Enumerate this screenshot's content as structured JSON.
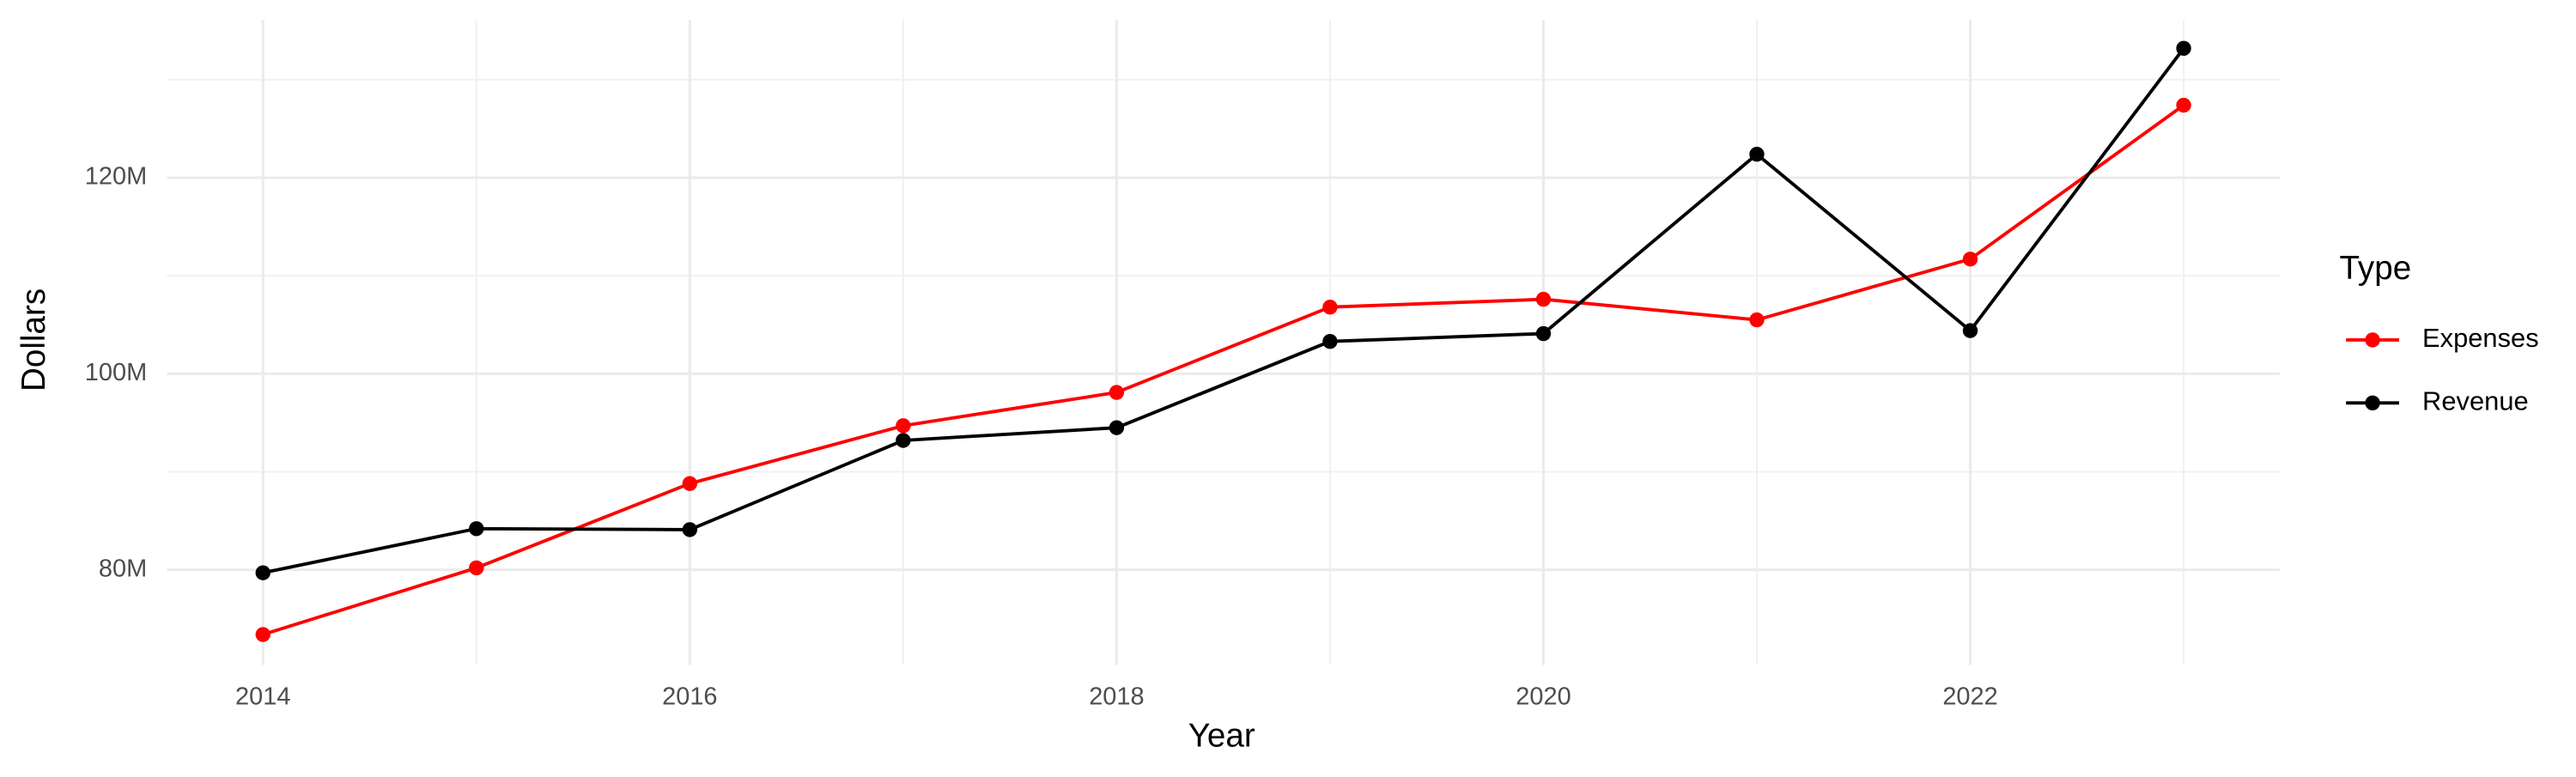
{
  "chart_data": {
    "type": "line",
    "x_label": "Year",
    "y_label": "Dollars",
    "legend_title": "Type",
    "x": [
      2014,
      2015,
      2016,
      2017,
      2018,
      2019,
      2020,
      2021,
      2022,
      2023
    ],
    "series": [
      {
        "name": "Expenses",
        "color": "#ff0000",
        "values": [
          73400000,
          80200000,
          88800000,
          94700000,
          98100000,
          106800000,
          107600000,
          105500000,
          111700000,
          127400000
        ]
      },
      {
        "name": "Revenue",
        "color": "#000000",
        "values": [
          79700000,
          84200000,
          84100000,
          93200000,
          94500000,
          103300000,
          104100000,
          122400000,
          104400000,
          133200000
        ]
      }
    ],
    "xlim": [
      2013.55,
      2023.45
    ],
    "xticks": [
      2014,
      2016,
      2018,
      2020,
      2022
    ],
    "ylim": [
      70300000,
      136100000
    ],
    "yticks": [
      {
        "value": 80000000,
        "label": "80M"
      },
      {
        "value": 100000000,
        "label": "100M"
      },
      {
        "value": 120000000,
        "label": "120M"
      }
    ],
    "grid": true,
    "legend": "right"
  }
}
